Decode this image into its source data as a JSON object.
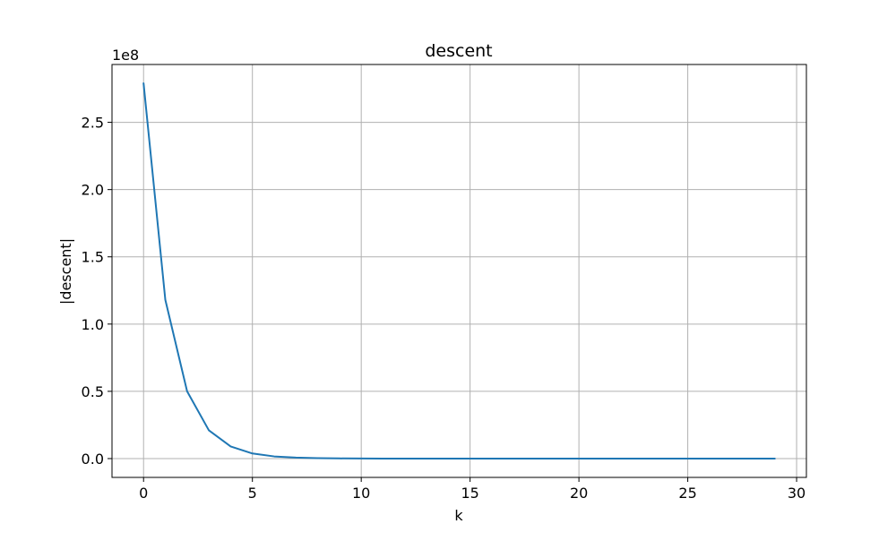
{
  "chart_data": {
    "type": "line",
    "title": "descent",
    "xlabel": "k",
    "ylabel": "|descent|",
    "y_offset_label": "1e8",
    "y_scale_factor": 100000000,
    "xlim": [
      -1.45,
      30.45
    ],
    "ylim": [
      -14000000,
      293000000
    ],
    "xticks": [
      0,
      5,
      10,
      15,
      20,
      25,
      30
    ],
    "xtick_labels": [
      "0",
      "5",
      "10",
      "15",
      "20",
      "25",
      "30"
    ],
    "yticks": [
      0,
      50000000,
      100000000,
      150000000,
      200000000,
      250000000
    ],
    "ytick_labels": [
      "0.0",
      "0.5",
      "1.0",
      "1.5",
      "2.0",
      "2.5"
    ],
    "grid": true,
    "series": [
      {
        "color": "#1f77b4",
        "x": [
          0,
          1,
          2,
          3,
          4,
          5,
          6,
          7,
          8,
          9,
          10,
          11,
          12,
          13,
          14,
          15,
          16,
          17,
          18,
          19,
          20,
          21,
          22,
          23,
          24,
          25,
          26,
          27,
          28,
          29
        ],
        "y": [
          279000000,
          118000000,
          50000000,
          21000000,
          9000000,
          3800000,
          1600000,
          700000,
          300000,
          120000,
          50000,
          20000,
          9000,
          4000,
          1600,
          700,
          300,
          120,
          50,
          20,
          9,
          4,
          2,
          1,
          0,
          0,
          0,
          0,
          0,
          0
        ]
      }
    ]
  }
}
